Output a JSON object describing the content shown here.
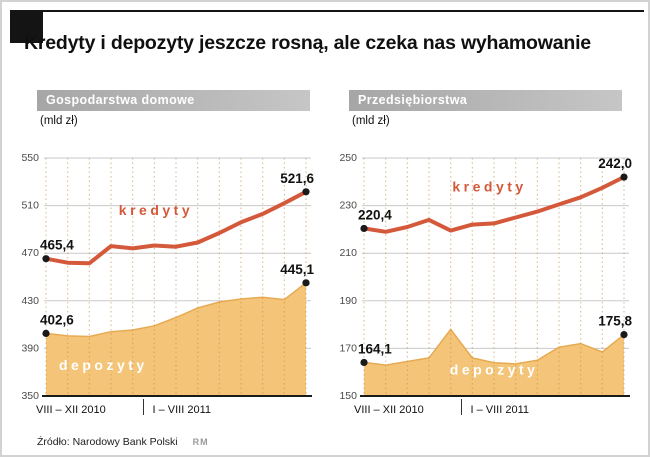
{
  "header": {
    "title": "Kredyty i depozyty jeszcze rosną, ale czeka nas wyhamowanie"
  },
  "footer": {
    "source": "Źródło: Narodowy Bank Polski",
    "logo": "RM"
  },
  "colors": {
    "line": "#d4593a",
    "area": "#f4c478",
    "area_edge": "#e6ab52",
    "grid": "#c9c9c9",
    "vgrid": "#c1924d",
    "dot": "#1a1a1a",
    "axis": "#1a1a1a"
  },
  "chart_data": [
    {
      "type": "line+area",
      "title": "Gospodarstwa domowe",
      "unit": "(mld zł)",
      "ylim": [
        350,
        550
      ],
      "yticks": [
        350,
        390,
        430,
        470,
        510,
        550
      ],
      "x_axis": {
        "group1": "VIII – XII 2010",
        "group2": "I – VIII 2011",
        "divider_after_index": 4
      },
      "series": [
        {
          "name": "kredyty",
          "kind": "line",
          "values": [
            465.4,
            462.0,
            461.5,
            476.0,
            474.0,
            476.5,
            475.5,
            479.0,
            487.0,
            496.0,
            503.0,
            512.0,
            521.6
          ],
          "first_label": "465,4",
          "last_label": "521,6",
          "label": {
            "text": "kredyty",
            "x_frac": 0.28,
            "y_value": 502,
            "color": "line"
          }
        },
        {
          "name": "depozyty",
          "kind": "area",
          "values": [
            402.6,
            400.5,
            400.0,
            404.0,
            405.5,
            409.0,
            416.0,
            424.0,
            429.0,
            431.5,
            433.0,
            431.0,
            445.1
          ],
          "first_label": "402,6",
          "last_label": "445,1",
          "label": {
            "text": "depozyty",
            "x_frac": 0.05,
            "y_value": 372,
            "color": "#ffffff"
          }
        }
      ]
    },
    {
      "type": "line+area",
      "title": "Przedsiębiorstwa",
      "unit": "(mld zł)",
      "ylim": [
        150,
        250
      ],
      "yticks": [
        150,
        170,
        190,
        210,
        230,
        250
      ],
      "x_axis": {
        "group1": "VIII – XII 2010",
        "group2": "I – VIII 2011",
        "divider_after_index": 4
      },
      "series": [
        {
          "name": "kredyty",
          "kind": "line",
          "values": [
            220.4,
            219.0,
            221.0,
            224.0,
            219.5,
            222.0,
            222.5,
            225.0,
            227.5,
            230.5,
            233.5,
            237.5,
            242.0
          ],
          "first_label": "220,4",
          "last_label": "242,0",
          "label": {
            "text": "kredyty",
            "x_frac": 0.34,
            "y_value": 236,
            "color": "line"
          }
        },
        {
          "name": "depozyty",
          "kind": "area",
          "values": [
            164.1,
            163.0,
            164.5,
            166.0,
            178.0,
            166.0,
            164.0,
            163.5,
            165.0,
            170.5,
            172.0,
            168.5,
            175.8
          ],
          "first_label": "164,1",
          "last_label": "175,8",
          "label": {
            "text": "depozyty",
            "x_frac": 0.33,
            "y_value": 159,
            "color": "#ffffff"
          }
        }
      ]
    }
  ]
}
